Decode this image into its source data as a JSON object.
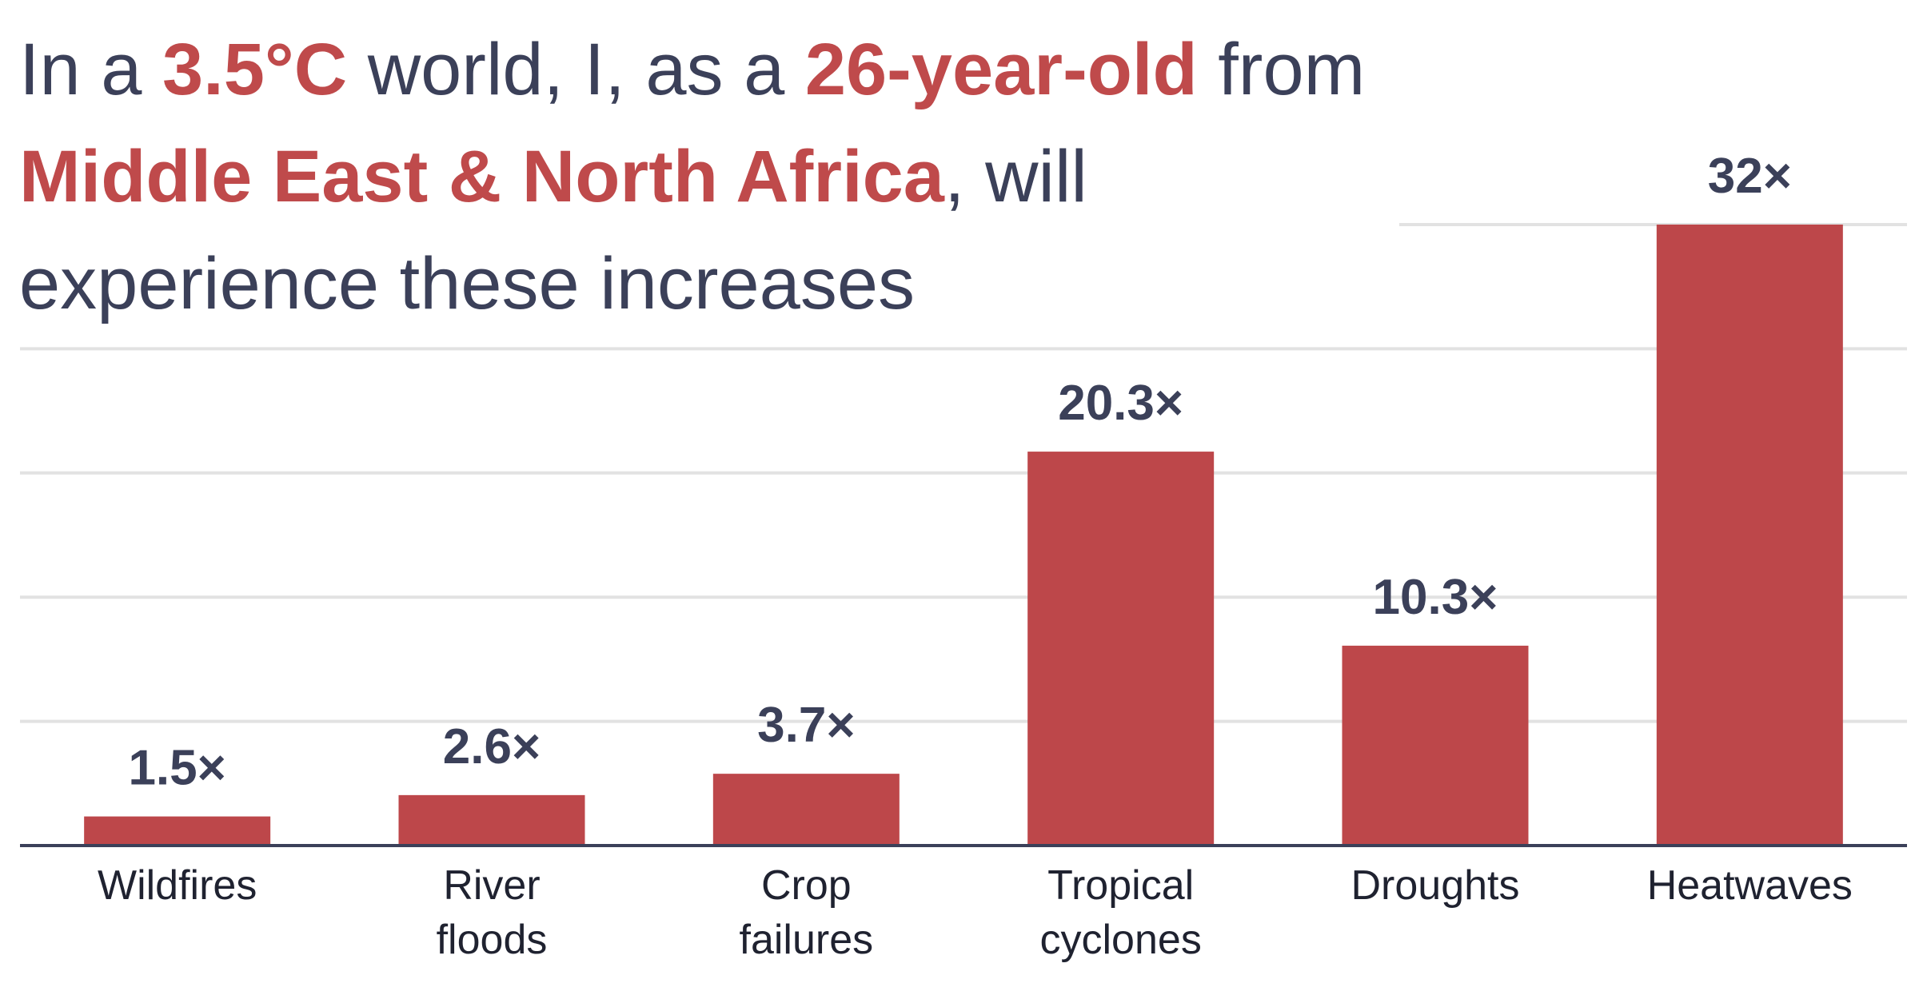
{
  "title": {
    "part1": "In a ",
    "temp": "3.5°C",
    "part2": " world, I, as a ",
    "age": "26-year-old",
    "part3": " from ",
    "region": "Middle East & North Africa",
    "part4": ", will experience these increases"
  },
  "colors": {
    "bar": "#bd474a",
    "highlight": "#bf4a4b",
    "text": "#3b4059",
    "grid": "#e2e2e2",
    "axis": "#3b4059"
  },
  "chart_data": {
    "type": "bar",
    "categories": [
      [
        "Wildfires"
      ],
      [
        "River",
        "floods"
      ],
      [
        "Crop",
        "failures"
      ],
      [
        "Tropical",
        "cyclones"
      ],
      [
        "Droughts"
      ],
      [
        "Heatwaves"
      ]
    ],
    "values": [
      1.5,
      2.6,
      3.7,
      20.3,
      10.3,
      32
    ],
    "value_labels": [
      "1.5×",
      "2.6×",
      "3.7×",
      "20.3×",
      "10.3×",
      "32×"
    ],
    "ylim": [
      0,
      32
    ],
    "gridlines": [
      6.4,
      12.8,
      19.2,
      25.6,
      32
    ],
    "grid": true,
    "xlabel": "",
    "ylabel": ""
  }
}
